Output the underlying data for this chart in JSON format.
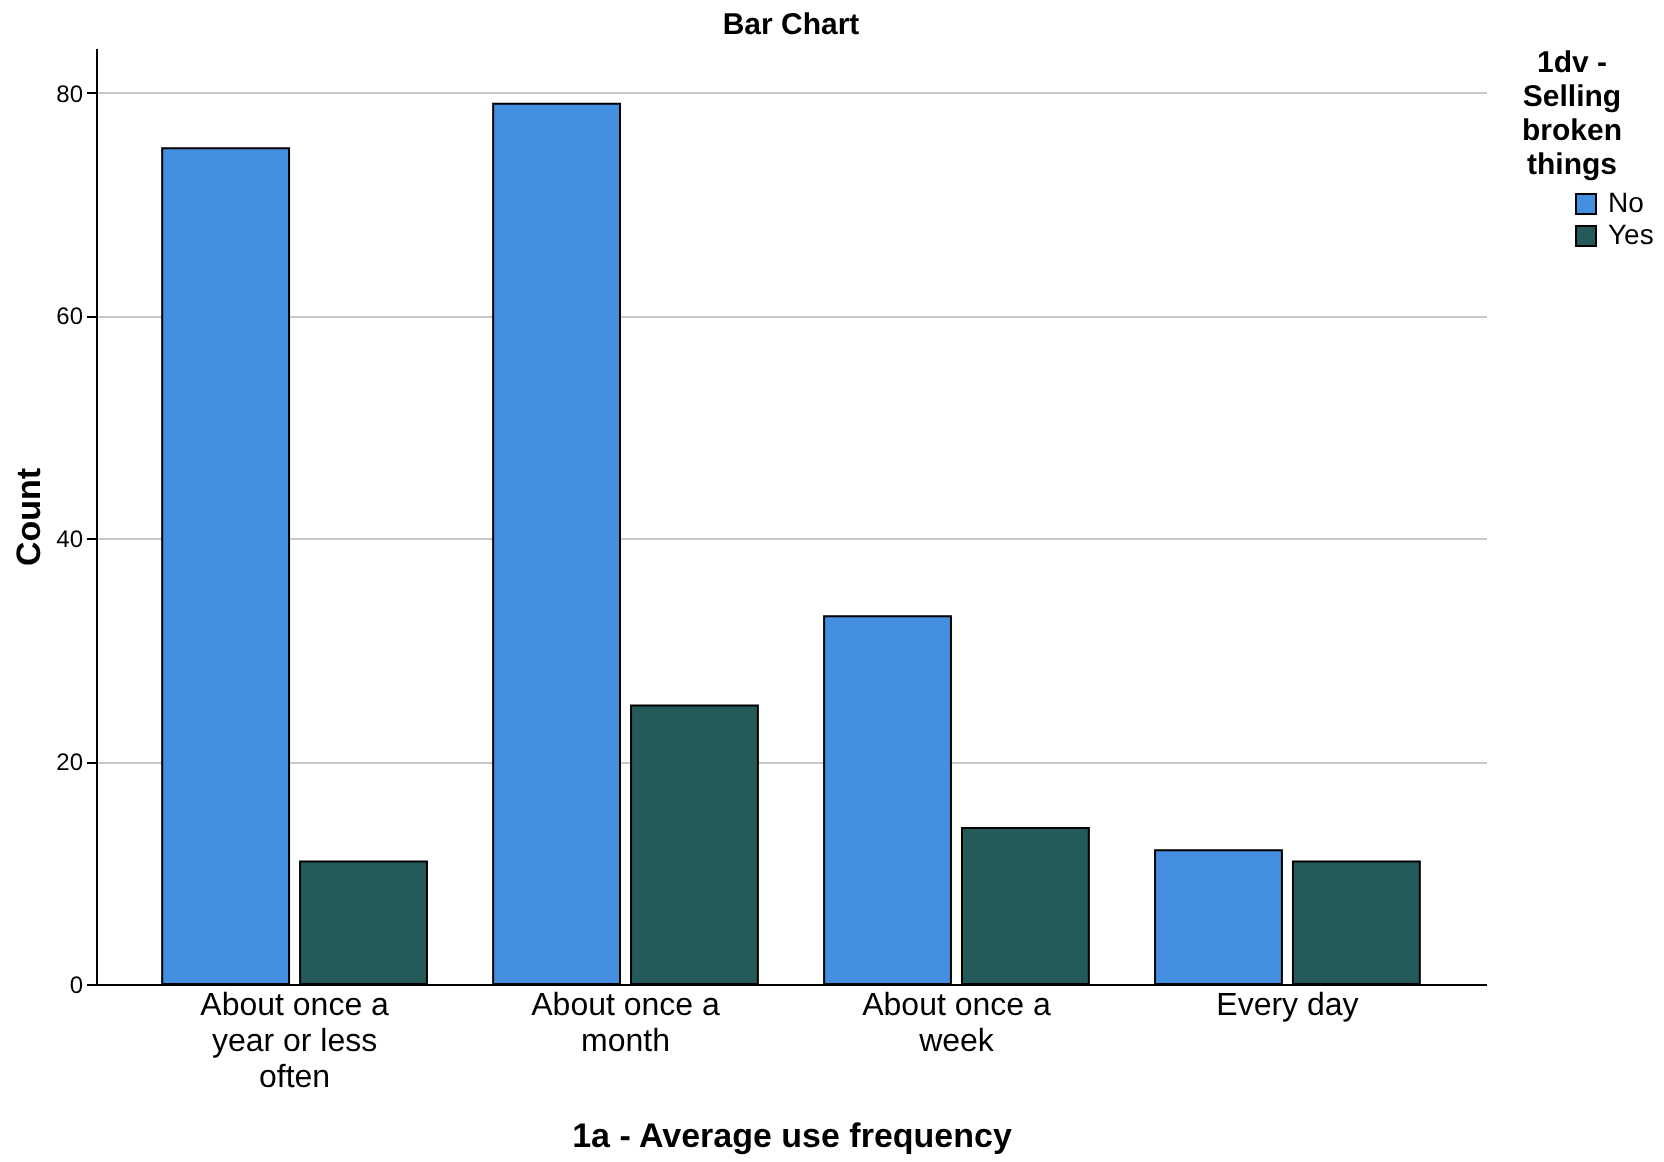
{
  "chart_data": {
    "type": "bar",
    "title": "Bar Chart",
    "xlabel": "1a - Average use frequency",
    "ylabel": "Count",
    "legend_title": "1dv - Selling broken things",
    "categories": [
      "About once a year or less often",
      "About once a month",
      "About once a week",
      "Every day"
    ],
    "series": [
      {
        "name": "No",
        "color": "#448fdf",
        "values": [
          75,
          79,
          33,
          12
        ]
      },
      {
        "name": "Yes",
        "color": "#245a5a",
        "values": [
          11,
          25,
          14,
          11
        ]
      }
    ],
    "ylim": [
      0,
      84
    ],
    "yticks": [
      0,
      20,
      40,
      60,
      80
    ],
    "grid": "y",
    "legend": "top right"
  }
}
